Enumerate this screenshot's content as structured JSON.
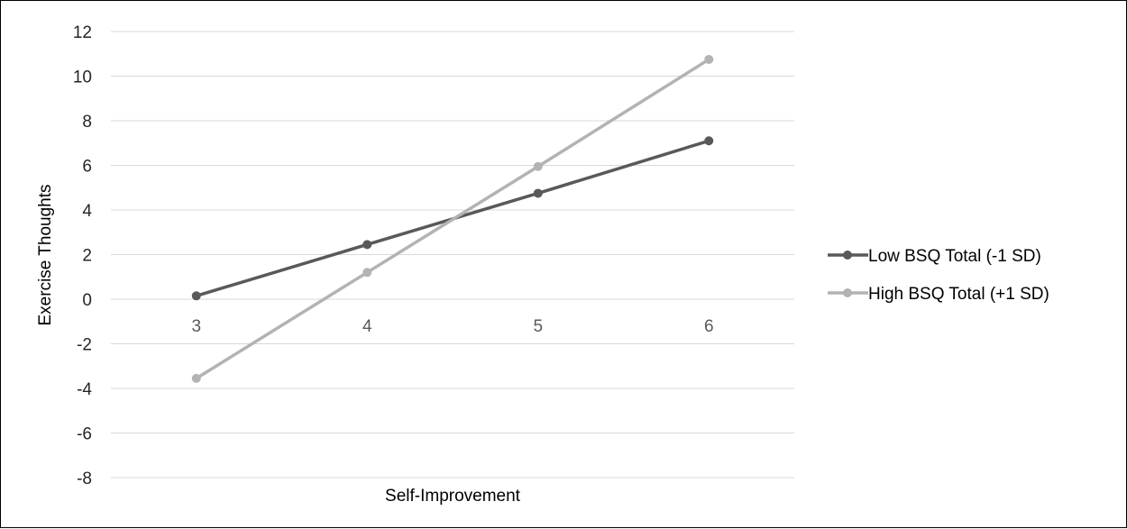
{
  "chart_data": {
    "type": "line",
    "title": "",
    "xlabel": "Self-Improvement",
    "ylabel": "Exercise Thoughts",
    "categories": [
      "3",
      "4",
      "5",
      "6"
    ],
    "ylim": [
      -8,
      12
    ],
    "yticks": [
      "12",
      "10",
      "8",
      "6",
      "4",
      "2",
      "0",
      "-2",
      "-4",
      "-6",
      "-8"
    ],
    "grid": true,
    "legend_position": "right",
    "series": [
      {
        "name": "Low BSQ Total (-1 SD)",
        "color": "#595959",
        "values": [
          0.15,
          2.45,
          4.75,
          7.1
        ]
      },
      {
        "name": "High BSQ Total (+1 SD)",
        "color": "#b3b3b3",
        "values": [
          -3.55,
          1.2,
          5.95,
          10.75
        ]
      }
    ]
  }
}
